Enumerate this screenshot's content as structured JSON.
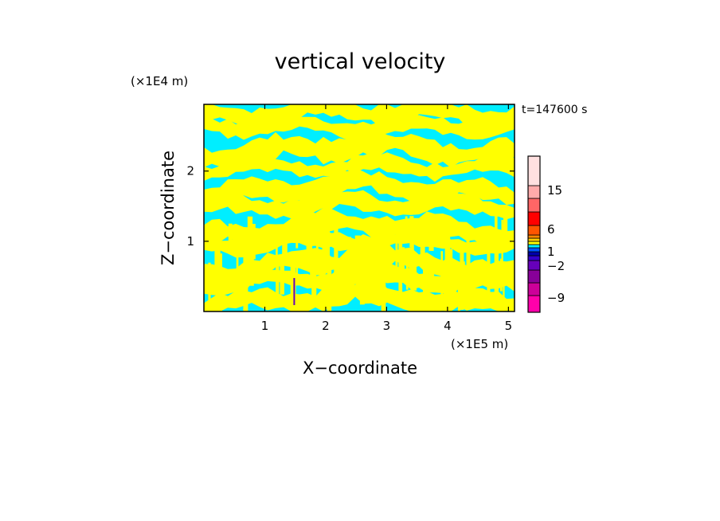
{
  "chart_data": {
    "type": "heatmap",
    "title": "vertical velocity",
    "xlabel": "X−coordinate",
    "ylabel": "Z−coordinate",
    "x_unit": "(×1E5 m)",
    "y_unit": "(×1E4 m)",
    "time_label": "t=147600 s",
    "xlim": [
      0,
      5.1
    ],
    "ylim": [
      0,
      2.95
    ],
    "x_ticks": [
      1,
      2,
      3,
      4,
      5
    ],
    "y_ticks": [
      1,
      2
    ],
    "x_tick_labels": [
      "1",
      "2",
      "3",
      "4",
      "5"
    ],
    "y_tick_labels": [
      "1",
      "2"
    ],
    "field_colors": {
      "positive": "#ffff00",
      "negative": "#00eeff"
    },
    "colorbar": {
      "levels": [
        {
          "color": "#ff00aa"
        },
        {
          "color": "#cc0099"
        },
        {
          "color": "#880099"
        },
        {
          "color": "#6600bb"
        },
        {
          "color": "#3300cc"
        },
        {
          "color": "#0000aa"
        },
        {
          "color": "#0055ff"
        },
        {
          "color": "#00eeff"
        },
        {
          "color": "#ffff00"
        },
        {
          "color": "#ffcc00"
        },
        {
          "color": "#ff8800"
        },
        {
          "color": "#ff5500"
        },
        {
          "color": "#ff0000"
        },
        {
          "color": "#ff6666"
        },
        {
          "color": "#ffaaaa"
        },
        {
          "color": "#ffe0e0"
        }
      ],
      "labels": [
        {
          "text": "−9",
          "value": -9
        },
        {
          "text": "−2",
          "value": -2
        },
        {
          "text": "1",
          "value": 1
        },
        {
          "text": "6",
          "value": 6
        },
        {
          "text": "15",
          "value": 15
        }
      ]
    }
  }
}
